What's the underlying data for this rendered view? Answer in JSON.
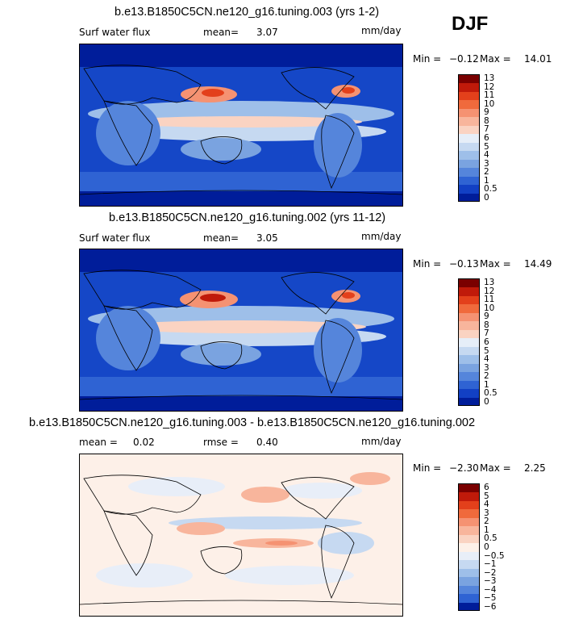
{
  "season": "DJF",
  "panels": [
    {
      "title": "b.e13.B1850C5CN.ne120_g16.tuning.003 (yrs 1-2)",
      "left_label": "Surf water flux",
      "stat_label": "mean=",
      "stat_value": "3.07",
      "stat2_label": "",
      "stat2_value": "",
      "units": "mm/day",
      "min_label": "Min =",
      "min_value": "−0.12",
      "max_label": "Max =",
      "max_value": "14.01"
    },
    {
      "title": "b.e13.B1850C5CN.ne120_g16.tuning.002 (yrs 11-12)",
      "left_label": "Surf water flux",
      "stat_label": "mean=",
      "stat_value": "3.05",
      "stat2_label": "",
      "stat2_value": "",
      "units": "mm/day",
      "min_label": "Min =",
      "min_value": "−0.13",
      "max_label": "Max =",
      "max_value": "14.49"
    },
    {
      "title": "b.e13.B1850C5CN.ne120_g16.tuning.003 - b.e13.B1850C5CN.ne120_g16.tuning.002",
      "left_label": "mean =",
      "stat_label": "0.02",
      "stat_value": "",
      "stat2_label": "rmse =",
      "stat2_value": "0.40",
      "units": "mm/day",
      "min_label": "Min =",
      "min_value": "−2.30",
      "max_label": "Max =",
      "max_value": "2.25"
    }
  ],
  "chart_data": [
    {
      "type": "heatmap",
      "title": "b.e13.B1850C5CN.ne120_g16.tuning.003 (yrs 1-2)",
      "variable": "Surf water flux",
      "units": "mm/day",
      "mean": 3.07,
      "min": -0.12,
      "max": 14.01,
      "colorbar_levels": [
        "13",
        "12",
        "11",
        "10",
        "9",
        "8",
        "7",
        "6",
        "5",
        "4",
        "3",
        "2",
        "1",
        "0.5",
        "0"
      ],
      "colorbar_colors": [
        "#7a0000",
        "#c01a0a",
        "#e3401b",
        "#f06a3c",
        "#f59272",
        "#f8b59c",
        "#fad3c2",
        "#e6eef8",
        "#c6d9f1",
        "#9ebfe9",
        "#7aa3e0",
        "#5585db",
        "#2f63d3",
        "#1240c4",
        "#001d9a"
      ]
    },
    {
      "type": "heatmap",
      "title": "b.e13.B1850C5CN.ne120_g16.tuning.002 (yrs 11-12)",
      "variable": "Surf water flux",
      "units": "mm/day",
      "mean": 3.05,
      "min": -0.13,
      "max": 14.49,
      "colorbar_levels": [
        "13",
        "12",
        "11",
        "10",
        "9",
        "8",
        "7",
        "6",
        "5",
        "4",
        "3",
        "2",
        "1",
        "0.5",
        "0"
      ],
      "colorbar_colors": [
        "#7a0000",
        "#c01a0a",
        "#e3401b",
        "#f06a3c",
        "#f59272",
        "#f8b59c",
        "#fad3c2",
        "#e6eef8",
        "#c6d9f1",
        "#9ebfe9",
        "#7aa3e0",
        "#5585db",
        "#2f63d3",
        "#1240c4",
        "#001d9a"
      ]
    },
    {
      "type": "heatmap",
      "title": "b.e13.B1850C5CN.ne120_g16.tuning.003 - b.e13.B1850C5CN.ne120_g16.tuning.002",
      "units": "mm/day",
      "mean": 0.02,
      "rmse": 0.4,
      "min": -2.3,
      "max": 2.25,
      "colorbar_levels": [
        "6",
        "5",
        "4",
        "3",
        "2",
        "1",
        "0.5",
        "0",
        "−0.5",
        "−1",
        "−2",
        "−3",
        "−4",
        "−5",
        "−6"
      ],
      "colorbar_colors": [
        "#7a0000",
        "#c01a0a",
        "#e3401b",
        "#f06a3c",
        "#f59272",
        "#f8b59c",
        "#fad3c2",
        "#fdf0e8",
        "#e8eef8",
        "#c6d9f1",
        "#9ebfe9",
        "#7aa3e0",
        "#5585db",
        "#2f63d3",
        "#001d9a"
      ]
    }
  ]
}
